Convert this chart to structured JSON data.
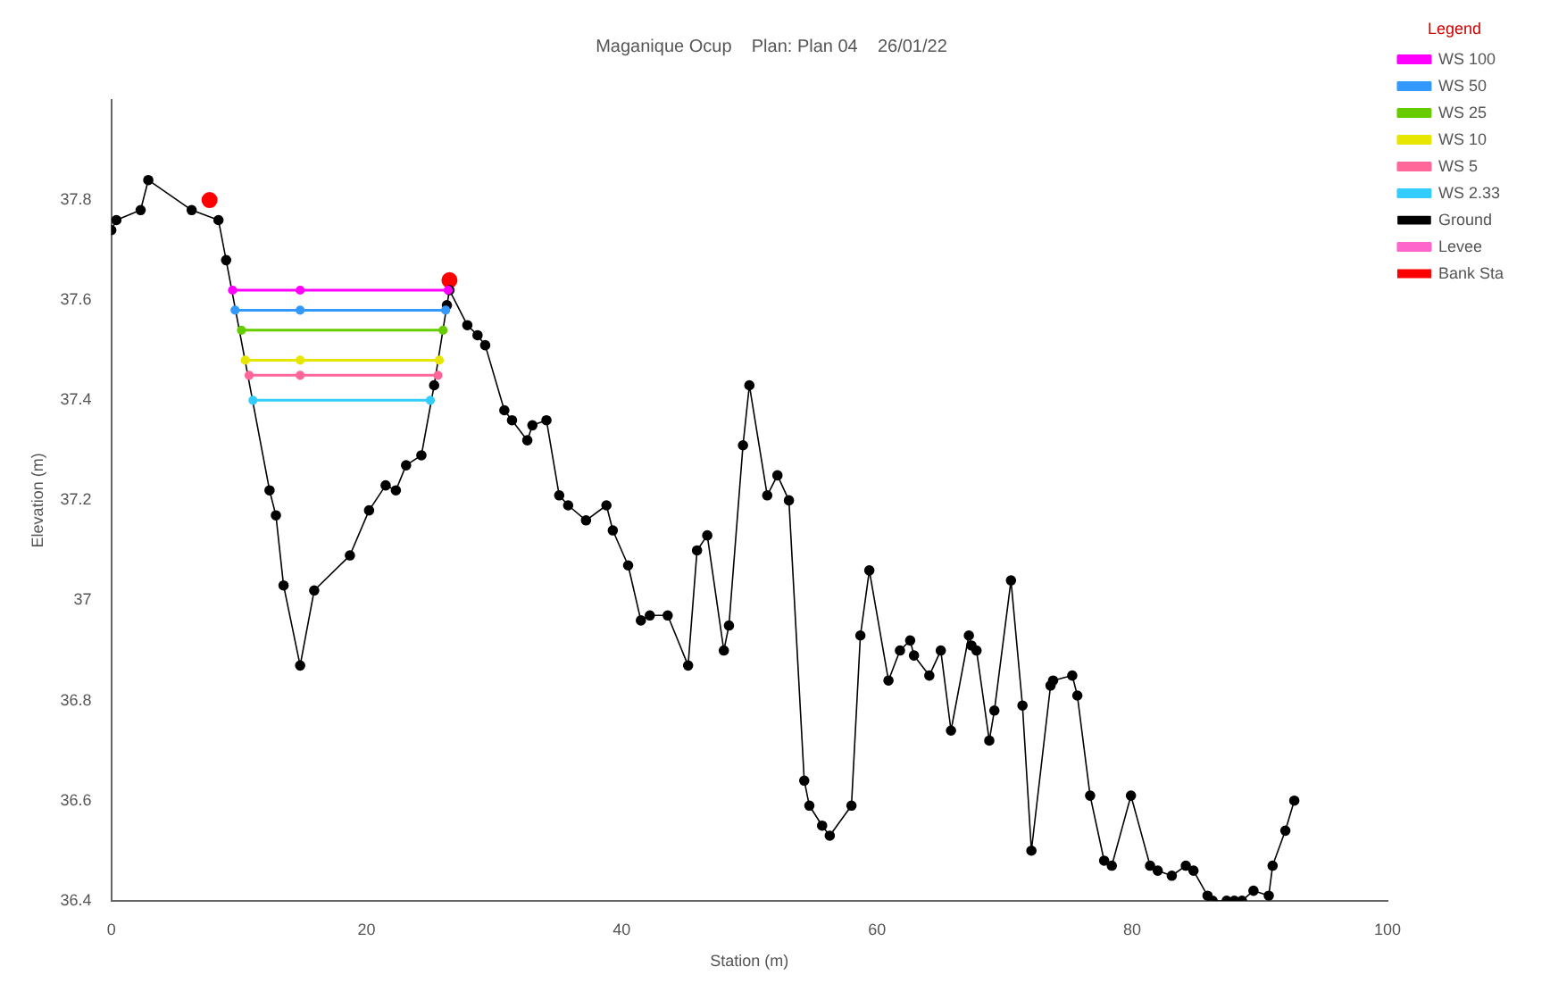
{
  "chart_data": {
    "type": "line",
    "title": "Maganique Ocup    Plan: Plan 04    26/01/22",
    "xlabel": "Station (m)",
    "ylabel": "Elevation (m)",
    "legend_title": "Legend",
    "legend": "top right",
    "grid": false,
    "marker": "circle",
    "line_style": "solid",
    "xlim": [
      0,
      100
    ],
    "xticks": [
      0,
      20,
      40,
      60,
      80,
      100
    ],
    "ylim": [
      36.4,
      38.0
    ],
    "yticks": [
      36.4,
      36.6,
      36.8,
      37.0,
      37.2,
      37.4,
      37.6,
      37.8
    ],
    "series": [
      {
        "name": "WS 100",
        "color": "#ff00ff",
        "x": [
          9.5,
          14.8,
          26.4
        ],
        "values": [
          37.62,
          37.62,
          37.62
        ]
      },
      {
        "name": "WS 50",
        "color": "#3399ff",
        "x": [
          9.7,
          14.8,
          26.2
        ],
        "values": [
          37.58,
          37.58,
          37.58
        ]
      },
      {
        "name": "WS 25",
        "color": "#66cc00",
        "x": [
          10.2,
          26.0
        ],
        "values": [
          37.54,
          37.54
        ]
      },
      {
        "name": "WS 10",
        "color": "#e6e600",
        "x": [
          10.5,
          14.8,
          25.7
        ],
        "values": [
          37.48,
          37.48,
          37.48
        ]
      },
      {
        "name": "WS 5",
        "color": "#ff6699",
        "x": [
          10.8,
          14.8,
          25.6
        ],
        "values": [
          37.45,
          37.45,
          37.45
        ]
      },
      {
        "name": "WS 2.33",
        "color": "#33ccff",
        "x": [
          11.1,
          25.0
        ],
        "values": [
          37.4,
          37.4
        ]
      },
      {
        "name": "Ground",
        "color": "#000000",
        "x": [
          0,
          0.4,
          2.3,
          2.9,
          6.3,
          8.4,
          9.0,
          12.4,
          12.9,
          13.5,
          14.8,
          15.9,
          18.7,
          20.2,
          21.5,
          22.3,
          23.1,
          24.3,
          25.3,
          26.3,
          26.5,
          27.9,
          28.7,
          29.3,
          30.8,
          31.4,
          32.6,
          33.0,
          34.1,
          35.1,
          35.8,
          37.2,
          38.8,
          39.3,
          40.5,
          41.5,
          42.2,
          43.6,
          45.2,
          45.9,
          46.7,
          48.0,
          48.4,
          49.5,
          50.0,
          51.4,
          52.2,
          53.1,
          54.3,
          54.7,
          55.7,
          56.3,
          58.0,
          58.7,
          59.4,
          60.9,
          61.8,
          62.6,
          62.9,
          64.1,
          65.0,
          65.8,
          67.2,
          67.4,
          67.8,
          68.8,
          69.2,
          70.5,
          71.4,
          72.1,
          73.6,
          73.8,
          75.3,
          75.7,
          76.7,
          77.8,
          78.4,
          79.9,
          81.4,
          82.0,
          83.1,
          84.2,
          84.8,
          85.9,
          86.3,
          87.4,
          88.0,
          88.6,
          89.5,
          90.7,
          91.0,
          92.0,
          92.7
        ],
        "values": [
          37.74,
          37.76,
          37.78,
          37.84,
          37.78,
          37.76,
          37.68,
          37.22,
          37.17,
          37.03,
          36.87,
          37.02,
          37.09,
          37.18,
          37.23,
          37.22,
          37.27,
          37.29,
          37.43,
          37.59,
          37.62,
          37.55,
          37.53,
          37.51,
          37.38,
          37.36,
          37.32,
          37.35,
          37.36,
          37.21,
          37.19,
          37.16,
          37.19,
          37.14,
          37.07,
          36.96,
          36.97,
          36.97,
          36.87,
          37.1,
          37.13,
          36.9,
          36.95,
          37.31,
          37.43,
          37.21,
          37.25,
          37.2,
          36.64,
          36.59,
          36.55,
          36.53,
          36.59,
          36.93,
          37.06,
          36.84,
          36.9,
          36.92,
          36.89,
          36.85,
          36.9,
          36.74,
          36.93,
          36.91,
          36.9,
          36.72,
          36.78,
          37.04,
          36.79,
          36.5,
          36.83,
          36.84,
          36.85,
          36.81,
          36.61,
          36.48,
          36.47,
          36.61,
          36.47,
          36.46,
          36.45,
          36.47,
          36.46,
          36.41,
          36.4,
          36.4,
          36.4,
          36.4,
          36.42,
          36.41,
          36.47,
          36.54,
          36.6
        ]
      },
      {
        "name": "Levee",
        "color": "#ff66cc"
      },
      {
        "name": "Bank Sta",
        "type": "scatter",
        "color": "#ff0000",
        "x": [
          7.7,
          26.5
        ],
        "values": [
          37.8,
          37.64
        ]
      }
    ]
  }
}
